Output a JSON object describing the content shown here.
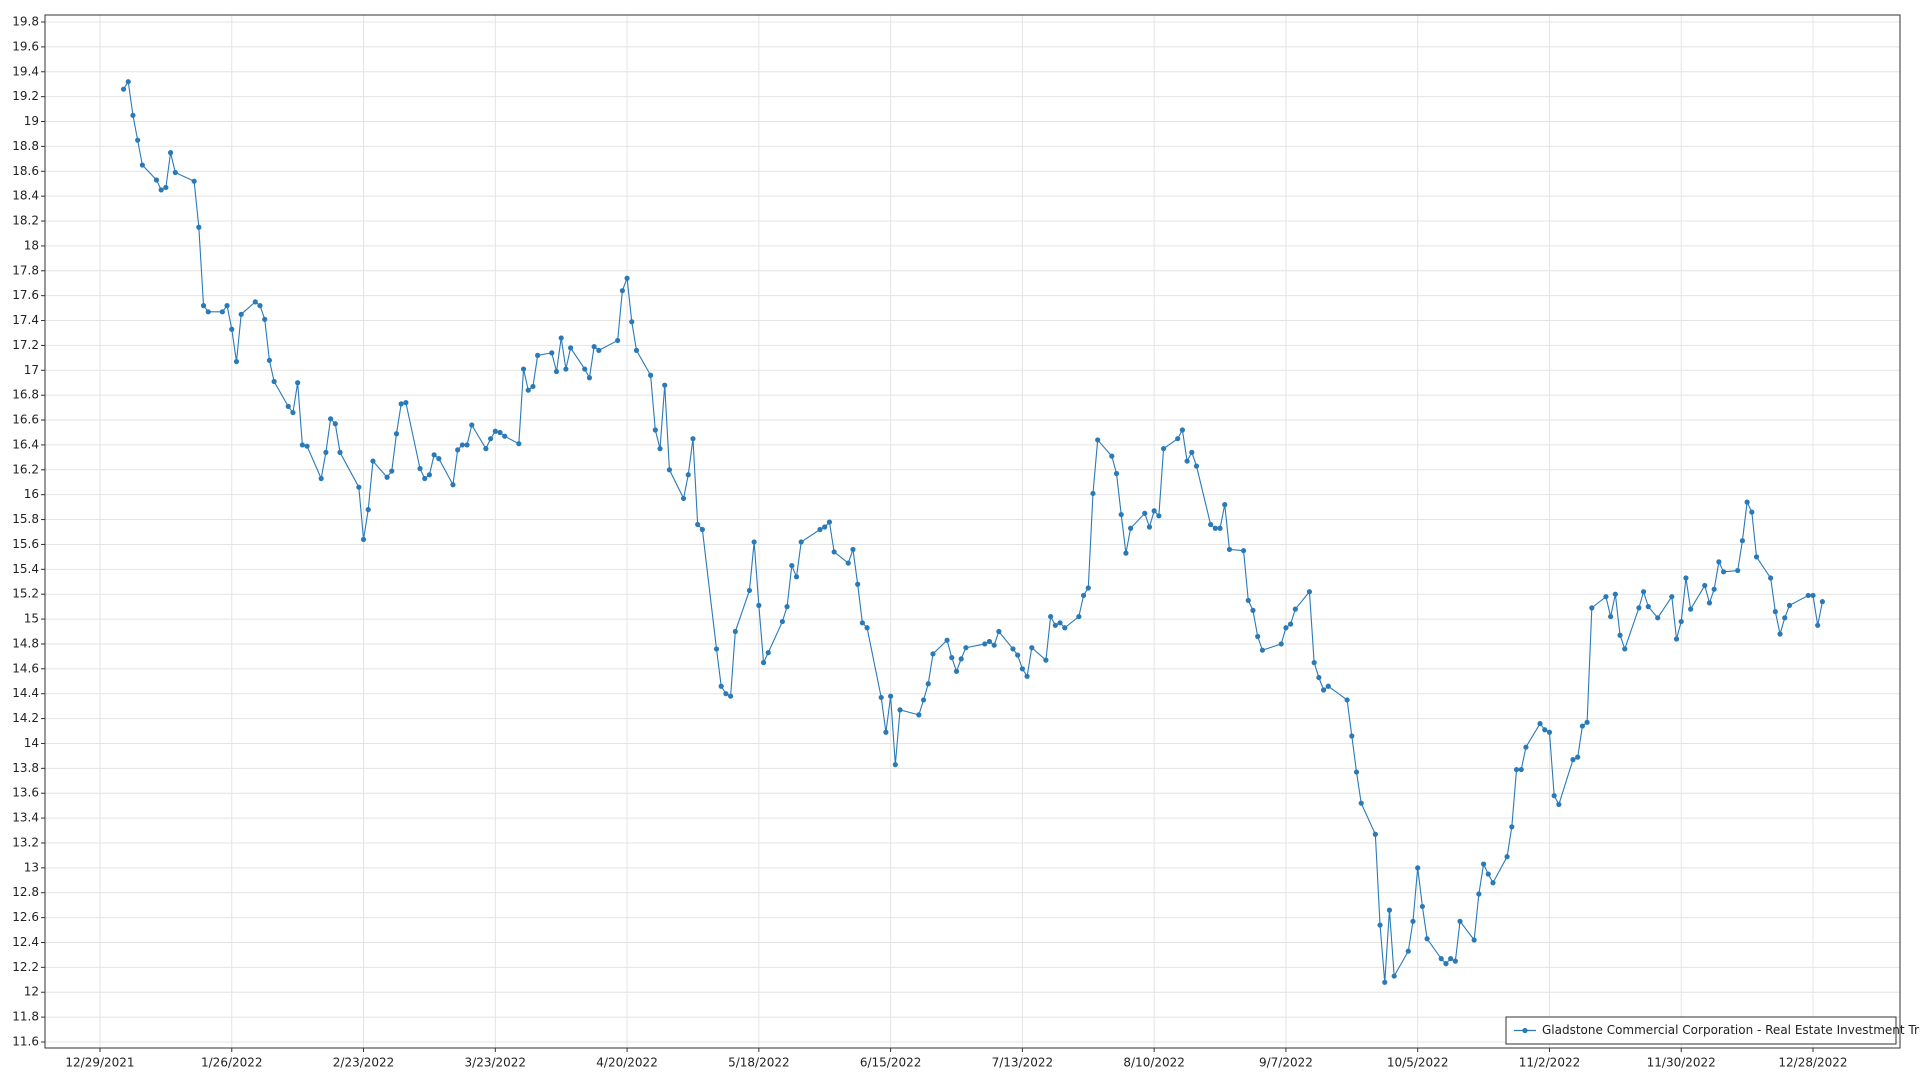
{
  "chart_data": {
    "type": "line",
    "x": [
      "1/3/2022",
      "1/4/2022",
      "1/5/2022",
      "1/6/2022",
      "1/7/2022",
      "1/10/2022",
      "1/11/2022",
      "1/12/2022",
      "1/13/2022",
      "1/14/2022",
      "1/18/2022",
      "1/19/2022",
      "1/20/2022",
      "1/21/2022",
      "1/24/2022",
      "1/25/2022",
      "1/26/2022",
      "1/27/2022",
      "1/28/2022",
      "1/31/2022",
      "2/1/2022",
      "2/2/2022",
      "2/3/2022",
      "2/4/2022",
      "2/7/2022",
      "2/8/2022",
      "2/9/2022",
      "2/10/2022",
      "2/11/2022",
      "2/14/2022",
      "2/15/2022",
      "2/16/2022",
      "2/17/2022",
      "2/18/2022",
      "2/22/2022",
      "2/23/2022",
      "2/24/2022",
      "2/25/2022",
      "2/28/2022",
      "3/1/2022",
      "3/2/2022",
      "3/3/2022",
      "3/4/2022",
      "3/7/2022",
      "3/8/2022",
      "3/9/2022",
      "3/10/2022",
      "3/11/2022",
      "3/14/2022",
      "3/15/2022",
      "3/16/2022",
      "3/17/2022",
      "3/18/2022",
      "3/21/2022",
      "3/22/2022",
      "3/23/2022",
      "3/24/2022",
      "3/25/2022",
      "3/28/2022",
      "3/29/2022",
      "3/30/2022",
      "3/31/2022",
      "4/1/2022",
      "4/4/2022",
      "4/5/2022",
      "4/6/2022",
      "4/7/2022",
      "4/8/2022",
      "4/11/2022",
      "4/12/2022",
      "4/13/2022",
      "4/14/2022",
      "4/18/2022",
      "4/19/2022",
      "4/20/2022",
      "4/21/2022",
      "4/22/2022",
      "4/25/2022",
      "4/26/2022",
      "4/27/2022",
      "4/28/2022",
      "4/29/2022",
      "5/2/2022",
      "5/3/2022",
      "5/4/2022",
      "5/5/2022",
      "5/6/2022",
      "5/9/2022",
      "5/10/2022",
      "5/11/2022",
      "5/12/2022",
      "5/13/2022",
      "5/16/2022",
      "5/17/2022",
      "5/18/2022",
      "5/19/2022",
      "5/20/2022",
      "5/23/2022",
      "5/24/2022",
      "5/25/2022",
      "5/26/2022",
      "5/27/2022",
      "5/31/2022",
      "6/1/2022",
      "6/2/2022",
      "6/3/2022",
      "6/6/2022",
      "6/7/2022",
      "6/8/2022",
      "6/9/2022",
      "6/10/2022",
      "6/13/2022",
      "6/14/2022",
      "6/15/2022",
      "6/16/2022",
      "6/17/2022",
      "6/21/2022",
      "6/22/2022",
      "6/23/2022",
      "6/24/2022",
      "6/27/2022",
      "6/28/2022",
      "6/29/2022",
      "6/30/2022",
      "7/1/2022",
      "7/5/2022",
      "7/6/2022",
      "7/7/2022",
      "7/8/2022",
      "7/11/2022",
      "7/12/2022",
      "7/13/2022",
      "7/14/2022",
      "7/15/2022",
      "7/18/2022",
      "7/19/2022",
      "7/20/2022",
      "7/21/2022",
      "7/22/2022",
      "7/25/2022",
      "7/26/2022",
      "7/27/2022",
      "7/28/2022",
      "7/29/2022",
      "8/1/2022",
      "8/2/2022",
      "8/3/2022",
      "8/4/2022",
      "8/5/2022",
      "8/8/2022",
      "8/9/2022",
      "8/10/2022",
      "8/11/2022",
      "8/12/2022",
      "8/15/2022",
      "8/16/2022",
      "8/17/2022",
      "8/18/2022",
      "8/19/2022",
      "8/22/2022",
      "8/23/2022",
      "8/24/2022",
      "8/25/2022",
      "8/26/2022",
      "8/29/2022",
      "8/30/2022",
      "8/31/2022",
      "9/1/2022",
      "9/2/2022",
      "9/6/2022",
      "9/7/2022",
      "9/8/2022",
      "9/9/2022",
      "9/12/2022",
      "9/13/2022",
      "9/14/2022",
      "9/15/2022",
      "9/16/2022",
      "9/20/2022",
      "9/21/2022",
      "9/22/2022",
      "9/23/2022",
      "9/26/2022",
      "9/27/2022",
      "9/28/2022",
      "9/29/2022",
      "9/30/2022",
      "10/3/2022",
      "10/4/2022",
      "10/5/2022",
      "10/6/2022",
      "10/7/2022",
      "10/10/2022",
      "10/11/2022",
      "10/12/2022",
      "10/13/2022",
      "10/14/2022",
      "10/17/2022",
      "10/18/2022",
      "10/19/2022",
      "10/20/2022",
      "10/21/2022",
      "10/24/2022",
      "10/25/2022",
      "10/26/2022",
      "10/27/2022",
      "10/28/2022",
      "10/31/2022",
      "11/1/2022",
      "11/2/2022",
      "11/3/2022",
      "11/4/2022",
      "11/7/2022",
      "11/8/2022",
      "11/9/2022",
      "11/10/2022",
      "11/11/2022",
      "11/14/2022",
      "11/15/2022",
      "11/16/2022",
      "11/17/2022",
      "11/18/2022",
      "11/21/2022",
      "11/22/2022",
      "11/23/2022",
      "11/25/2022",
      "11/28/2022",
      "11/29/2022",
      "11/30/2022",
      "12/1/2022",
      "12/2/2022",
      "12/5/2022",
      "12/6/2022",
      "12/7/2022",
      "12/8/2022",
      "12/9/2022",
      "12/12/2022",
      "12/13/2022",
      "12/14/2022",
      "12/15/2022",
      "12/16/2022",
      "12/19/2022",
      "12/20/2022",
      "12/21/2022",
      "12/22/2022",
      "12/23/2022",
      "12/27/2022",
      "12/28/2022",
      "12/29/2022",
      "12/30/2022"
    ],
    "series": [
      {
        "name": "Gladstone Commercial Corporation - Real Estate Investment Trust",
        "color": "#2a7ab8",
        "values": [
          19.26,
          19.32,
          19.05,
          18.85,
          18.65,
          18.53,
          18.45,
          18.47,
          18.75,
          18.59,
          18.52,
          18.15,
          17.52,
          17.47,
          17.47,
          17.52,
          17.33,
          17.07,
          17.45,
          17.55,
          17.52,
          17.41,
          17.08,
          16.91,
          16.71,
          16.66,
          16.9,
          16.4,
          16.39,
          16.13,
          16.34,
          16.61,
          16.57,
          16.34,
          16.06,
          15.64,
          15.88,
          16.27,
          16.14,
          16.19,
          16.49,
          16.73,
          16.74,
          16.21,
          16.13,
          16.16,
          16.32,
          16.29,
          16.08,
          16.36,
          16.4,
          16.4,
          16.56,
          16.37,
          16.45,
          16.51,
          16.5,
          16.47,
          16.41,
          17.01,
          16.84,
          16.87,
          17.12,
          17.14,
          16.99,
          17.26,
          17.01,
          17.18,
          17.01,
          16.94,
          17.19,
          17.16,
          17.24,
          17.64,
          17.74,
          17.39,
          17.16,
          16.96,
          16.52,
          16.37,
          16.88,
          16.2,
          15.97,
          16.16,
          16.45,
          15.76,
          15.72,
          14.76,
          14.46,
          14.4,
          14.38,
          14.9,
          15.23,
          15.62,
          15.11,
          14.65,
          14.73,
          14.98,
          15.1,
          15.43,
          15.34,
          15.62,
          15.72,
          15.74,
          15.78,
          15.54,
          15.45,
          15.56,
          15.28,
          14.97,
          14.93,
          14.37,
          14.09,
          14.38,
          13.83,
          14.27,
          14.23,
          14.35,
          14.48,
          14.72,
          14.83,
          14.69,
          14.58,
          14.68,
          14.77,
          14.8,
          14.82,
          14.79,
          14.9,
          14.76,
          14.71,
          14.6,
          14.54,
          14.77,
          14.67,
          15.02,
          14.95,
          14.97,
          14.93,
          15.02,
          15.19,
          15.25,
          16.01,
          16.44,
          16.31,
          16.17,
          15.84,
          15.53,
          15.73,
          15.85,
          15.74,
          15.87,
          15.83,
          16.37,
          16.45,
          16.52,
          16.27,
          16.34,
          16.23,
          15.76,
          15.73,
          15.73,
          15.92,
          15.56,
          15.55,
          15.15,
          15.07,
          14.86,
          14.75,
          14.8,
          14.93,
          14.96,
          15.08,
          15.22,
          14.65,
          14.53,
          14.43,
          14.46,
          14.35,
          14.06,
          13.77,
          13.52,
          13.27,
          12.54,
          12.08,
          12.66,
          12.13,
          12.33,
          12.57,
          13.0,
          12.69,
          12.43,
          12.27,
          12.23,
          12.27,
          12.25,
          12.57,
          12.42,
          12.79,
          13.03,
          12.95,
          12.88,
          13.09,
          13.33,
          13.79,
          13.79,
          13.97,
          14.16,
          14.11,
          14.09,
          13.58,
          13.51,
          13.87,
          13.89,
          14.14,
          14.17,
          15.09,
          15.18,
          15.02,
          15.2,
          14.87,
          14.76,
          15.09,
          15.22,
          15.1,
          15.01,
          15.18,
          14.84,
          14.98,
          15.33,
          15.08,
          15.27,
          15.13,
          15.24,
          15.46,
          15.38,
          15.39,
          15.63,
          15.94,
          15.86,
          15.5,
          15.33,
          15.06,
          14.88,
          15.01,
          15.11,
          15.19,
          15.19,
          14.95,
          15.14
        ]
      }
    ],
    "xlim": [
      "12/29/2021",
      "12/28/2022"
    ],
    "xticks": [
      "12/29/2021",
      "1/26/2022",
      "2/23/2022",
      "3/23/2022",
      "4/20/2022",
      "5/18/2022",
      "6/15/2022",
      "7/13/2022",
      "8/10/2022",
      "9/7/2022",
      "10/5/2022",
      "11/2/2022",
      "11/30/2022",
      "12/28/2022"
    ],
    "ylim": [
      11.6,
      19.8
    ],
    "yticks": [
      11.6,
      11.8,
      12,
      12.2,
      12.4,
      12.6,
      12.8,
      13,
      13.2,
      13.4,
      13.6,
      13.8,
      14,
      14.2,
      14.4,
      14.6,
      14.8,
      15,
      15.2,
      15.4,
      15.6,
      15.8,
      16,
      16.2,
      16.4,
      16.6,
      16.8,
      17,
      17.2,
      17.4,
      17.6,
      17.8,
      18,
      18.2,
      18.4,
      18.6,
      18.8,
      19,
      19.2,
      19.4,
      19.6,
      19.8
    ],
    "grid": true,
    "legend": "lower right"
  }
}
